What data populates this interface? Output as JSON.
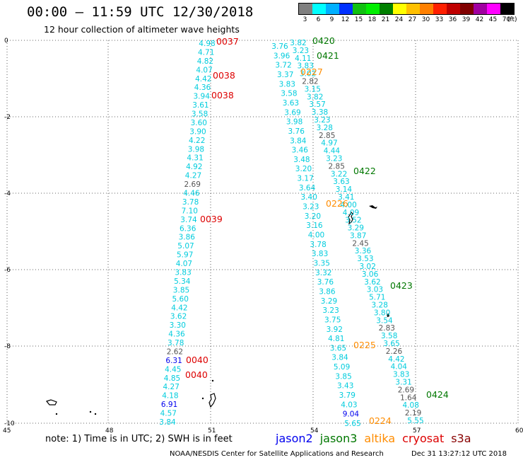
{
  "header": {
    "title": "00:00 – 11:59 UTC 12/30/2018",
    "subtitle": "12 hour collection of altimeter wave heights"
  },
  "colorbar": {
    "colors": [
      "#808080",
      "#00ffff",
      "#00b0ff",
      "#0030ff",
      "#10c010",
      "#00ee00",
      "#008000",
      "#ffff00",
      "#ffc000",
      "#ff8000",
      "#ff2000",
      "#c00000",
      "#800000",
      "#a000a0",
      "#ff00ff",
      "#000000"
    ],
    "labels": [
      "3",
      "6",
      "9",
      "12",
      "15",
      "18",
      "21",
      "24",
      "27",
      "30",
      "33",
      "36",
      "39",
      "42",
      "45",
      "70"
    ],
    "unit": "(ft)"
  },
  "axes": {
    "lon_ticks": [
      "45",
      "48",
      "51",
      "54",
      "57",
      "60"
    ],
    "lat_ticks": [
      "0",
      "-2",
      "-4",
      "-6",
      "-8",
      "-10"
    ]
  },
  "colors": {
    "jason2": "#0000ee",
    "jason3": "#007700",
    "altika": "#ff8c00",
    "cryosat": "#dd0000",
    "s3a": "#880000",
    "cyan": "#00ccdd",
    "gray": "#555555"
  },
  "tracks": {
    "track1": [
      {
        "v": "4.98",
        "c": "cyan"
      },
      {
        "v": "4.71",
        "c": "cyan"
      },
      {
        "v": "4.82",
        "c": "cyan"
      },
      {
        "v": "4.07",
        "c": "cyan"
      },
      {
        "v": "4.42",
        "c": "cyan"
      },
      {
        "v": "4.36",
        "c": "cyan"
      },
      {
        "v": "3.94",
        "c": "cyan"
      },
      {
        "v": "3.61",
        "c": "cyan"
      },
      {
        "v": "3.58",
        "c": "cyan"
      },
      {
        "v": "3.60",
        "c": "cyan"
      },
      {
        "v": "3.90",
        "c": "cyan"
      },
      {
        "v": "4.22",
        "c": "cyan"
      },
      {
        "v": "3.98",
        "c": "cyan"
      },
      {
        "v": "4.31",
        "c": "cyan"
      },
      {
        "v": "4.92",
        "c": "cyan"
      },
      {
        "v": "4.27",
        "c": "cyan"
      },
      {
        "v": "2.69",
        "c": "gray"
      },
      {
        "v": "4.46",
        "c": "cyan"
      },
      {
        "v": "3.78",
        "c": "cyan"
      },
      {
        "v": "7.10",
        "c": "cyan"
      },
      {
        "v": "3.74",
        "c": "cyan"
      },
      {
        "v": "6.36",
        "c": "cyan"
      },
      {
        "v": "3.86",
        "c": "cyan"
      },
      {
        "v": "5.07",
        "c": "cyan"
      },
      {
        "v": "5.97",
        "c": "cyan"
      },
      {
        "v": "4.07",
        "c": "cyan"
      },
      {
        "v": "3.83",
        "c": "cyan"
      },
      {
        "v": "5.34",
        "c": "cyan"
      },
      {
        "v": "3.85",
        "c": "cyan"
      },
      {
        "v": "5.60",
        "c": "cyan"
      },
      {
        "v": "4.42",
        "c": "cyan"
      },
      {
        "v": "3.62",
        "c": "cyan"
      },
      {
        "v": "3.30",
        "c": "cyan"
      },
      {
        "v": "4.36",
        "c": "cyan"
      },
      {
        "v": "3.78",
        "c": "cyan"
      },
      {
        "v": "2.62",
        "c": "gray"
      },
      {
        "v": "6.31",
        "c": "jason2"
      },
      {
        "v": "4.45",
        "c": "cyan"
      },
      {
        "v": "4.85",
        "c": "cyan"
      },
      {
        "v": "4.27",
        "c": "cyan"
      },
      {
        "v": "4.18",
        "c": "cyan"
      },
      {
        "v": "6.91",
        "c": "jason2"
      },
      {
        "v": "4.57",
        "c": "cyan"
      },
      {
        "v": "3.84",
        "c": "cyan"
      }
    ],
    "track2": [
      {
        "v": "3.76",
        "c": "cyan"
      },
      {
        "v": "3.96",
        "c": "cyan"
      },
      {
        "v": "3.72",
        "c": "cyan"
      },
      {
        "v": "3.37",
        "c": "cyan"
      },
      {
        "v": "3.83",
        "c": "cyan"
      },
      {
        "v": "3.58",
        "c": "cyan"
      },
      {
        "v": "3.63",
        "c": "cyan"
      },
      {
        "v": "3.69",
        "c": "cyan"
      },
      {
        "v": "3.98",
        "c": "cyan"
      },
      {
        "v": "3.76",
        "c": "cyan"
      },
      {
        "v": "3.84",
        "c": "cyan"
      },
      {
        "v": "3.46",
        "c": "cyan"
      },
      {
        "v": "3.48",
        "c": "cyan"
      },
      {
        "v": "3.20",
        "c": "cyan"
      },
      {
        "v": "3.17",
        "c": "cyan"
      },
      {
        "v": "3.64",
        "c": "cyan"
      },
      {
        "v": "3.40",
        "c": "cyan"
      },
      {
        "v": "3.23",
        "c": "cyan"
      },
      {
        "v": "3.20",
        "c": "cyan"
      },
      {
        "v": "3.16",
        "c": "cyan"
      },
      {
        "v": "4.00",
        "c": "cyan"
      },
      {
        "v": "3.78",
        "c": "cyan"
      },
      {
        "v": "3.83",
        "c": "cyan"
      },
      {
        "v": "3.35",
        "c": "cyan"
      },
      {
        "v": "3.32",
        "c": "cyan"
      },
      {
        "v": "3.76",
        "c": "cyan"
      },
      {
        "v": "3.86",
        "c": "cyan"
      },
      {
        "v": "3.29",
        "c": "cyan"
      },
      {
        "v": "3.23",
        "c": "cyan"
      },
      {
        "v": "3.75",
        "c": "cyan"
      },
      {
        "v": "3.92",
        "c": "cyan"
      },
      {
        "v": "4.81",
        "c": "cyan"
      },
      {
        "v": "3.65",
        "c": "cyan"
      },
      {
        "v": "3.84",
        "c": "cyan"
      },
      {
        "v": "5.09",
        "c": "cyan"
      },
      {
        "v": "3.85",
        "c": "cyan"
      },
      {
        "v": "3.43",
        "c": "cyan"
      },
      {
        "v": "3.79",
        "c": "cyan"
      },
      {
        "v": "4.03",
        "c": "cyan"
      },
      {
        "v": "9.04",
        "c": "jason2"
      },
      {
        "v": "5.65",
        "c": "cyan"
      }
    ],
    "track3": [
      {
        "v": "3.82",
        "c": "cyan"
      },
      {
        "v": "3.23",
        "c": "cyan"
      },
      {
        "v": "4.11",
        "c": "cyan"
      },
      {
        "v": "3.83",
        "c": "cyan"
      },
      {
        "v": "3.02",
        "c": "cyan"
      },
      {
        "v": "2.82",
        "c": "gray"
      },
      {
        "v": "3.15",
        "c": "cyan"
      },
      {
        "v": "3.82",
        "c": "cyan"
      },
      {
        "v": "3.57",
        "c": "cyan"
      },
      {
        "v": "3.38",
        "c": "cyan"
      },
      {
        "v": "3.23",
        "c": "cyan"
      },
      {
        "v": "3.28",
        "c": "cyan"
      },
      {
        "v": "2.85",
        "c": "gray"
      },
      {
        "v": "4.97",
        "c": "cyan"
      },
      {
        "v": "4.44",
        "c": "cyan"
      },
      {
        "v": "3.23",
        "c": "cyan"
      },
      {
        "v": "2.85",
        "c": "gray"
      },
      {
        "v": "3.22",
        "c": "cyan"
      },
      {
        "v": "3.63",
        "c": "cyan"
      },
      {
        "v": "3.14",
        "c": "cyan"
      },
      {
        "v": "3.41",
        "c": "cyan"
      },
      {
        "v": "4.00",
        "c": "cyan"
      },
      {
        "v": "4.09",
        "c": "cyan"
      },
      {
        "v": "3.52",
        "c": "cyan"
      },
      {
        "v": "3.29",
        "c": "cyan"
      },
      {
        "v": "3.87",
        "c": "cyan"
      },
      {
        "v": "2.45",
        "c": "gray"
      },
      {
        "v": "3.36",
        "c": "cyan"
      },
      {
        "v": "3.53",
        "c": "cyan"
      },
      {
        "v": "3.02",
        "c": "cyan"
      },
      {
        "v": "3.06",
        "c": "cyan"
      },
      {
        "v": "3.62",
        "c": "cyan"
      },
      {
        "v": "3.03",
        "c": "cyan"
      },
      {
        "v": "5.71",
        "c": "cyan"
      },
      {
        "v": "3.28",
        "c": "cyan"
      },
      {
        "v": "3.80",
        "c": "cyan"
      },
      {
        "v": "3.54",
        "c": "cyan"
      },
      {
        "v": "2.83",
        "c": "gray"
      },
      {
        "v": "3.58",
        "c": "cyan"
      },
      {
        "v": "3.65",
        "c": "cyan"
      },
      {
        "v": "2.26",
        "c": "gray"
      },
      {
        "v": "4.42",
        "c": "cyan"
      },
      {
        "v": "4.04",
        "c": "cyan"
      },
      {
        "v": "3.83",
        "c": "cyan"
      },
      {
        "v": "3.31",
        "c": "cyan"
      },
      {
        "v": "2.69",
        "c": "gray"
      },
      {
        "v": "1.64",
        "c": "gray"
      },
      {
        "v": "4.08",
        "c": "cyan"
      },
      {
        "v": "2.19",
        "c": "gray"
      },
      {
        "v": "5.55",
        "c": "cyan"
      }
    ]
  },
  "time_labels": [
    {
      "t": "0037",
      "c": "cryosat"
    },
    {
      "t": "0038",
      "c": "cryosat"
    },
    {
      "t": "0038",
      "c": "cryosat"
    },
    {
      "t": "0039",
      "c": "cryosat"
    },
    {
      "t": "0040",
      "c": "cryosat"
    },
    {
      "t": "0040",
      "c": "cryosat"
    },
    {
      "t": "0420",
      "c": "jason3"
    },
    {
      "t": "0421",
      "c": "jason3"
    },
    {
      "t": "0227",
      "c": "altika"
    },
    {
      "t": "0422",
      "c": "jason3"
    },
    {
      "t": "0226",
      "c": "altika"
    },
    {
      "t": "0423",
      "c": "jason3"
    },
    {
      "t": "0225",
      "c": "altika"
    },
    {
      "t": "0424",
      "c": "jason3"
    },
    {
      "t": "0224",
      "c": "altika"
    }
  ],
  "footer": {
    "note": "note: 1) Time is in UTC; 2) SWH is in feet",
    "legend": [
      {
        "name": "jason2",
        "c": "jason2"
      },
      {
        "name": "jason3",
        "c": "jason3"
      },
      {
        "name": "altika",
        "c": "altika"
      },
      {
        "name": "cryosat",
        "c": "cryosat"
      },
      {
        "name": "s3a",
        "c": "s3a"
      }
    ],
    "credit": "NOAA/NESDIS Center for Satellite Applications and Research",
    "timestamp": "Dec 31 13:27:12 UTC 2018"
  }
}
